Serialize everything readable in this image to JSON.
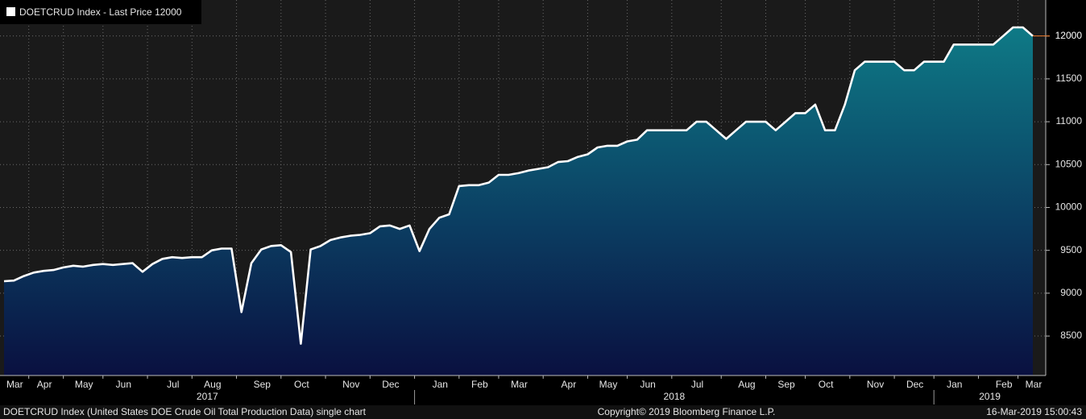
{
  "chart_data": {
    "type": "area-line",
    "series": [
      {
        "name": "DOETCRUD Index - Last Price",
        "color": "#ffffff",
        "values": [
          9140,
          9147,
          9200,
          9240,
          9260,
          9270,
          9300,
          9320,
          9310,
          9330,
          9340,
          9330,
          9340,
          9350,
          9250,
          9340,
          9400,
          9420,
          9410,
          9420,
          9420,
          9500,
          9520,
          9520,
          8780,
          9350,
          9510,
          9550,
          9560,
          9480,
          8410,
          9510,
          9550,
          9620,
          9650,
          9670,
          9680,
          9700,
          9780,
          9790,
          9750,
          9790,
          9490,
          9750,
          9880,
          9920,
          10250,
          10260,
          10260,
          10290,
          10380,
          10380,
          10400,
          10430,
          10450,
          10470,
          10530,
          10540,
          10590,
          10620,
          10700,
          10720,
          10720,
          10770,
          10790,
          10900,
          10900,
          10900,
          10900,
          10900,
          11000,
          11000,
          10900,
          10800,
          10900,
          11000,
          11000,
          11000,
          10900,
          11000,
          11100,
          11100,
          11200,
          10900,
          10900,
          11200,
          11600,
          11700,
          11700,
          11700,
          11700,
          11600,
          11600,
          11700,
          11700,
          11700,
          11900,
          11900,
          11900,
          11900,
          11900,
          12000,
          12100,
          12100,
          12000
        ]
      }
    ],
    "categories": [
      null,
      "Mar",
      null,
      null,
      "Apr",
      null,
      null,
      null,
      "May",
      null,
      null,
      null,
      "Jun",
      null,
      null,
      null,
      null,
      "Jul",
      null,
      null,
      null,
      "Aug",
      null,
      null,
      null,
      null,
      "Sep",
      null,
      null,
      null,
      "Oct",
      null,
      null,
      null,
      null,
      "Nov",
      null,
      null,
      null,
      "Dec",
      null,
      null,
      null,
      null,
      "Jan",
      null,
      null,
      null,
      "Feb",
      null,
      null,
      null,
      "Mar",
      null,
      null,
      null,
      null,
      "Apr",
      null,
      null,
      null,
      "May",
      null,
      null,
      null,
      "Jun",
      null,
      null,
      null,
      null,
      "Jul",
      null,
      null,
      null,
      null,
      "Aug",
      null,
      null,
      null,
      "Sep",
      null,
      null,
      null,
      "Oct",
      null,
      null,
      null,
      null,
      "Nov",
      null,
      null,
      null,
      "Dec",
      null,
      null,
      null,
      "Jan",
      null,
      null,
      null,
      null,
      "Feb",
      null,
      null,
      "Mar"
    ],
    "year_labels": [
      "2017",
      "2018",
      "2019"
    ],
    "ylim": [
      8040,
      12420
    ],
    "yticks": [
      8500,
      9000,
      9500,
      10000,
      10500,
      11000,
      11500,
      12000
    ],
    "grid": true,
    "footer": {
      "description": "DOETCRUD Index (United States DOE Crude Oil Total Production Data) single chart",
      "copyright": "Copyright© 2019 Bloomberg Finance L.P.",
      "timestamp": "16-Mar-2019 15:00:43"
    }
  }
}
